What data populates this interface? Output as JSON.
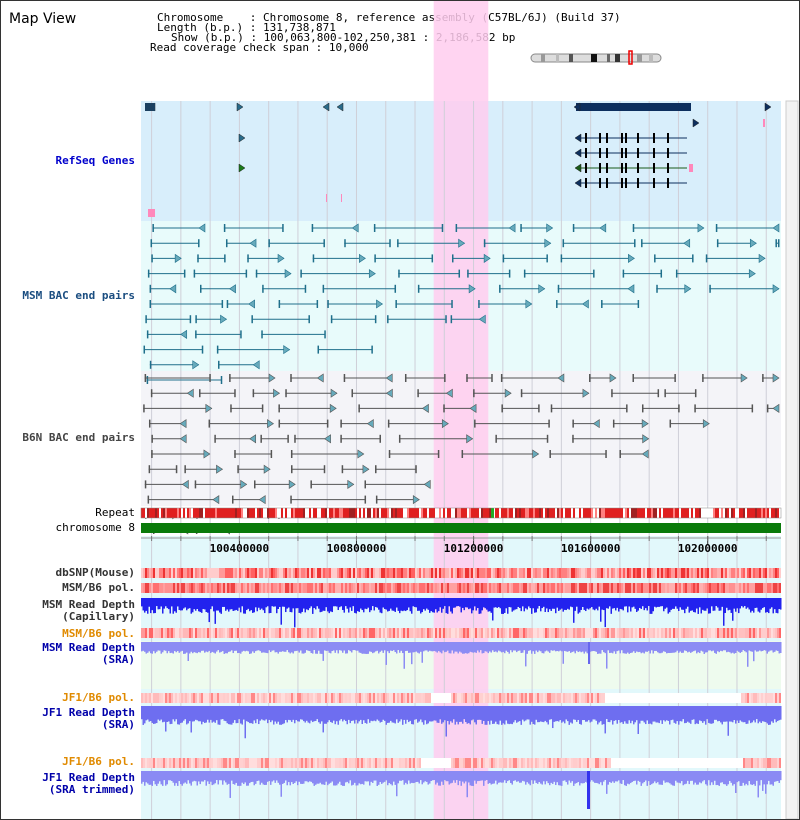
{
  "title": "Map View",
  "info": {
    "chromosome_key": "Chromosome",
    "chromosome_val": "Chromosome 8, reference assembly (C57BL/6J) (Build 37)",
    "length_key": "Length (b.p.)",
    "length_val": "131,738,871",
    "show_key": "Show (b.p.)",
    "show_val": "100,063,800-102,250,381 : 2,186,582 bp",
    "span_key": "Read coverage check span",
    "span_val": "10,000"
  },
  "tracks": {
    "refseq": {
      "label": "RefSeq Genes",
      "color": "#0000cc"
    },
    "msm_bac": {
      "label": "MSM BAC end pairs",
      "color": "#1a4d80"
    },
    "b6n_bac": {
      "label": "B6N BAC end pairs",
      "color": "#444444"
    },
    "repeat": {
      "label": "Repeat"
    },
    "chromosome": {
      "label": "chromosome 8"
    },
    "dbsnp": {
      "label": "dbSNP(Mouse)"
    },
    "msm_b6_pol_1": {
      "label": "MSM/B6 pol."
    },
    "msm_read_depth_cap": {
      "line1": "MSM Read Depth",
      "line2": "(Capillary)"
    },
    "msm_b6_pol_2": {
      "label": "MSM/B6 pol.",
      "color": "#e08a00"
    },
    "msm_read_depth_sra": {
      "line1": "MSM Read Depth",
      "line2": "(SRA)",
      "color": "#0000aa"
    },
    "jf1_b6_pol_1": {
      "label": "JF1/B6 pol.",
      "color": "#e08a00"
    },
    "jf1_read_depth_sra": {
      "line1": "JF1 Read Depth",
      "line2": "(SRA)",
      "color": "#0000aa"
    },
    "jf1_b6_pol_2": {
      "label": "JF1/B6 pol.",
      "color": "#e08a00"
    },
    "jf1_read_depth_trim": {
      "line1": "JF1 Read Depth",
      "line2": "(SRA trimmed)",
      "color": "#0000aa"
    }
  },
  "axis": {
    "ticks": [
      "100400000",
      "100800000",
      "101200000",
      "101600000",
      "102000000"
    ]
  },
  "highlight": {
    "start_bp": 101063800,
    "end_bp": 101250381,
    "color": "#ffccee"
  }
}
